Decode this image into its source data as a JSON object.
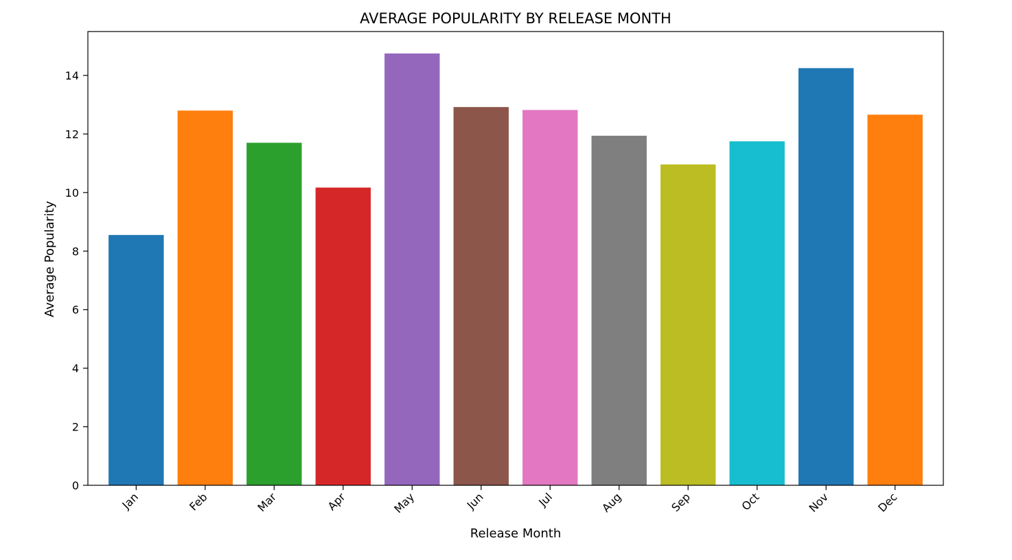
{
  "chart_data": {
    "type": "bar",
    "title": "AVERAGE POPULARITY BY RELEASE MONTH",
    "xlabel": "Release Month",
    "ylabel": "Average Popularity",
    "categories": [
      "Jan",
      "Feb",
      "Mar",
      "Apr",
      "May",
      "Jun",
      "Jul",
      "Aug",
      "Sep",
      "Oct",
      "Nov",
      "Dec"
    ],
    "values": [
      8.55,
      12.8,
      11.7,
      10.17,
      14.75,
      12.92,
      12.82,
      11.94,
      10.96,
      11.75,
      14.25,
      12.66
    ],
    "colors": [
      "#1f77b4",
      "#ff7f0e",
      "#2ca02c",
      "#d62728",
      "#9467bd",
      "#8c564b",
      "#e377c2",
      "#7f7f7f",
      "#bcbd22",
      "#17becf",
      "#1f77b4",
      "#ff7f0e"
    ],
    "ylim": [
      0,
      15.5
    ],
    "yticks": [
      0,
      2,
      4,
      6,
      8,
      10,
      12,
      14
    ],
    "grid": false,
    "legend": "none"
  }
}
